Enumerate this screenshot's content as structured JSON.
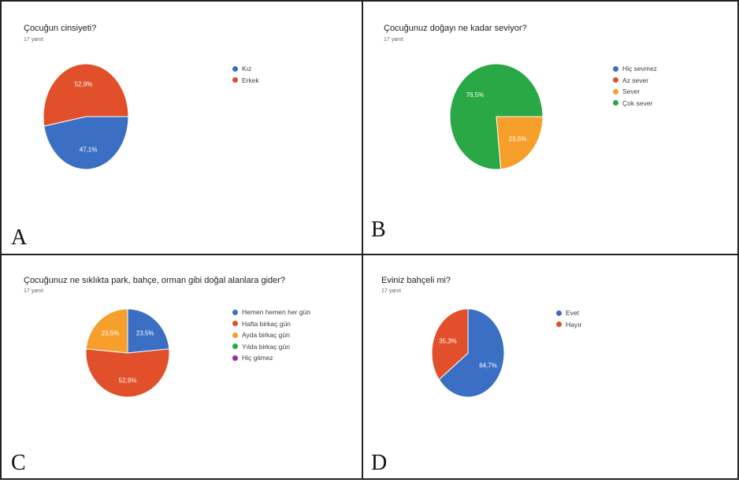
{
  "colors": {
    "blue": "#3366cc",
    "red": "#dc3912",
    "orange": "#ff9900",
    "green": "#109618",
    "purple": "#990099",
    "green_b": "#2aa845",
    "orange_b": "#f6a02b",
    "blue_b": "#3a6fc4",
    "red_b": "#e1502b"
  },
  "chart_data": [
    {
      "type": "pie",
      "panel_letter": "A",
      "title": "Çocuğun cinsiyeti?",
      "subtitle": "17 yanıt",
      "legend_placement": "right",
      "categories": [
        "Kız",
        "Erkek"
      ],
      "values": [
        47.1,
        52.9
      ],
      "labels": [
        "47,1%",
        "52,9%"
      ],
      "colors": [
        "#3a6fc4",
        "#e1502b"
      ]
    },
    {
      "type": "pie",
      "panel_letter": "B",
      "title": "Çocuğunuz doğayı ne kadar seviyor?",
      "subtitle": "17 yanıt",
      "legend_placement": "right",
      "categories": [
        "Hiç sevmez",
        "Az sever",
        "Sever",
        "Çok sever"
      ],
      "values": [
        0,
        0,
        23.5,
        76.5
      ],
      "labels": [
        "",
        "",
        "23,5%",
        "76,5%"
      ],
      "colors": [
        "#3a6fc4",
        "#e1502b",
        "#f6a02b",
        "#2aa845"
      ]
    },
    {
      "type": "pie",
      "panel_letter": "C",
      "title": "Çocuğunuz ne sıklıkta park, bahçe, orman gibi doğal alanlara gider?",
      "subtitle": "17 yanıt",
      "legend_placement": "right",
      "categories": [
        "Hemen hemen her gün",
        "Hafta birkaç gün",
        "Ayda birkaç gün",
        "Yılda birkaç gün",
        "Hiç gitmez"
      ],
      "values": [
        23.5,
        52.9,
        23.5,
        0,
        0
      ],
      "labels": [
        "23,5%",
        "52,9%",
        "23,5%",
        "",
        ""
      ],
      "colors": [
        "#3a6fc4",
        "#e1502b",
        "#f6a02b",
        "#2aa845",
        "#9c27b0"
      ]
    },
    {
      "type": "pie",
      "panel_letter": "D",
      "title": "Eviniz bahçeli mi?",
      "subtitle": "17 yanıt",
      "legend_placement": "right",
      "categories": [
        "Evet",
        "Hayır"
      ],
      "values": [
        64.7,
        35.3
      ],
      "labels": [
        "64,7%",
        "35,3%"
      ],
      "colors": [
        "#3a6fc4",
        "#e1502b"
      ]
    }
  ]
}
